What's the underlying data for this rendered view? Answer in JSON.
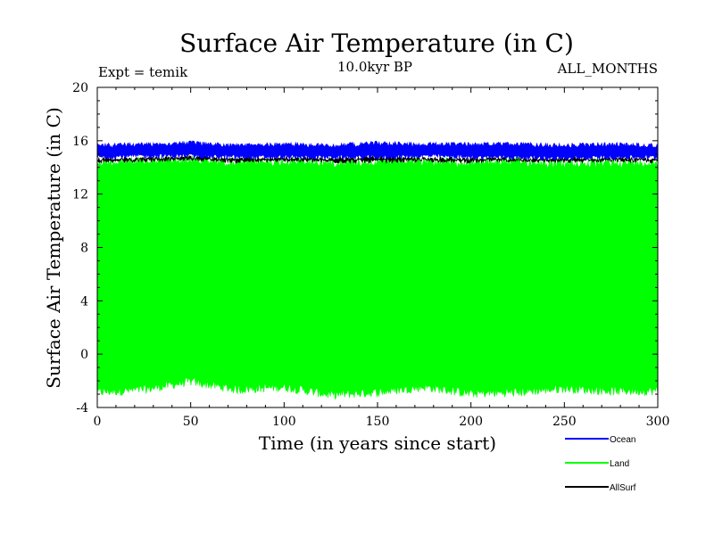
{
  "chart_data": {
    "type": "line",
    "title": "Surface Air Temperature (in C)",
    "subtitle": "10.0kyr BP",
    "experiment_label": "Expt = temik",
    "period_label": "ALL_MONTHS",
    "xlabel": "Time (in years since start)",
    "ylabel": "Surface Air Temperature (in C)",
    "xlim": [
      0,
      300
    ],
    "ylim": [
      -4,
      20
    ],
    "x_ticks": [
      0,
      50,
      100,
      150,
      200,
      250,
      300
    ],
    "y_ticks": [
      -4,
      0,
      4,
      8,
      12,
      16,
      20
    ],
    "grid": false,
    "legend_position": "bottom-right",
    "series": [
      {
        "name": "Ocean",
        "color": "#0000ff",
        "description": "monthly values oscillating in a narrow band",
        "band_low": 14.6,
        "band_high": 16.0,
        "x": [
          0,
          25,
          50,
          75,
          100,
          125,
          150,
          175,
          200,
          225,
          250,
          275,
          300
        ],
        "min_values": [
          14.6,
          14.7,
          14.7,
          14.6,
          14.6,
          14.6,
          14.6,
          14.7,
          14.6,
          14.6,
          14.5,
          14.6,
          14.6
        ],
        "max_values": [
          15.8,
          15.9,
          16.0,
          15.8,
          15.9,
          15.8,
          16.0,
          15.9,
          15.9,
          15.9,
          15.8,
          15.9,
          15.8
        ]
      },
      {
        "name": "Land",
        "color": "#00ff00",
        "description": "monthly values with large seasonal cycle",
        "band_low": -3.0,
        "band_high": 14.8,
        "x": [
          0,
          25,
          50,
          75,
          100,
          125,
          150,
          175,
          200,
          225,
          250,
          275,
          300
        ],
        "min_values": [
          -3.2,
          -3.0,
          -2.4,
          -3.0,
          -2.8,
          -3.4,
          -3.2,
          -2.8,
          -3.3,
          -3.2,
          -2.9,
          -3.1,
          -3.1
        ],
        "max_values": [
          14.7,
          14.8,
          14.9,
          14.7,
          14.8,
          14.7,
          14.8,
          14.8,
          14.7,
          14.8,
          14.6,
          14.7,
          14.7
        ]
      },
      {
        "name": "AllSurf",
        "color": "#000000",
        "description": "global mean, largely hidden behind ocean/land bands",
        "band_low": 14.3,
        "band_high": 14.9,
        "x": [
          0,
          25,
          50,
          75,
          100,
          125,
          150,
          175,
          200,
          225,
          250,
          275,
          300
        ],
        "min_values": [
          14.3,
          14.4,
          14.5,
          14.3,
          14.4,
          14.3,
          14.3,
          14.4,
          14.3,
          14.4,
          14.3,
          14.4,
          14.3
        ],
        "max_values": [
          14.8,
          14.8,
          14.9,
          14.8,
          14.8,
          14.8,
          14.9,
          14.8,
          14.8,
          14.8,
          14.8,
          14.8,
          14.8
        ]
      }
    ]
  }
}
